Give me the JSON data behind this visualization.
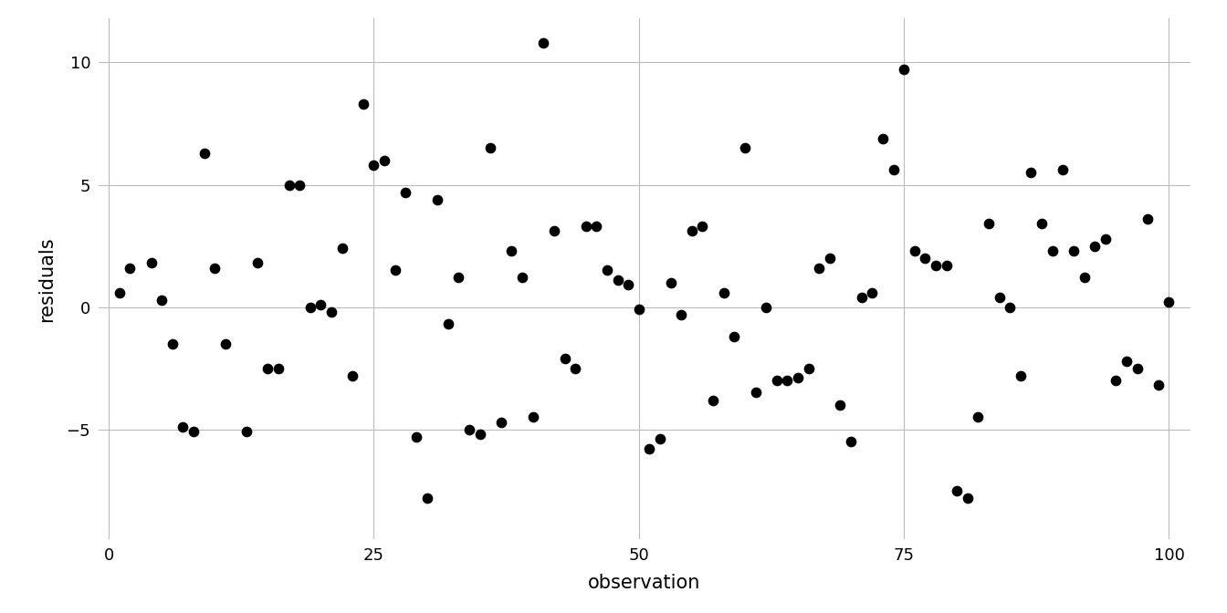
{
  "x": [
    1,
    2,
    4,
    5,
    6,
    7,
    8,
    9,
    10,
    11,
    13,
    14,
    15,
    16,
    17,
    18,
    19,
    20,
    21,
    22,
    23,
    24,
    25,
    26,
    27,
    28,
    29,
    30,
    31,
    32,
    33,
    34,
    35,
    36,
    37,
    38,
    39,
    40,
    41,
    42,
    43,
    44,
    45,
    46,
    47,
    48,
    49,
    50,
    51,
    52,
    53,
    54,
    55,
    56,
    57,
    58,
    59,
    60,
    61,
    62,
    63,
    64,
    65,
    66,
    67,
    68,
    69,
    70,
    71,
    72,
    73,
    74,
    75,
    76,
    77,
    78,
    79,
    80,
    81,
    82,
    83,
    84,
    85,
    86,
    87,
    88,
    89,
    90,
    91,
    92,
    93,
    94,
    95,
    96,
    97,
    98,
    99,
    100
  ],
  "y": [
    0.6,
    1.6,
    1.8,
    0.3,
    -1.5,
    -4.9,
    -5.1,
    6.3,
    1.6,
    -1.5,
    -5.1,
    1.8,
    -2.5,
    -2.5,
    5.0,
    5.0,
    0.0,
    0.1,
    -0.2,
    2.4,
    -2.8,
    8.3,
    5.8,
    6.0,
    1.5,
    4.7,
    -5.3,
    -7.8,
    4.4,
    -0.7,
    1.2,
    -5.0,
    -5.2,
    6.5,
    -4.7,
    2.3,
    1.2,
    -4.5,
    10.8,
    3.1,
    -2.1,
    -2.5,
    3.3,
    3.3,
    1.5,
    1.1,
    0.9,
    -0.1,
    -5.8,
    -5.4,
    1.0,
    -0.3,
    3.1,
    3.3,
    -3.8,
    0.6,
    -1.2,
    6.5,
    -3.5,
    -0.0,
    -3.0,
    -3.0,
    -2.9,
    -2.5,
    1.6,
    2.0,
    -4.0,
    -5.5,
    0.4,
    0.6,
    6.9,
    5.6,
    9.7,
    2.3,
    2.0,
    1.7,
    1.7,
    -7.5,
    -7.8,
    -4.5,
    3.4,
    0.4,
    0.0,
    -2.8,
    5.5,
    3.4,
    2.3,
    5.6,
    2.3,
    1.2,
    2.5,
    2.8,
    -3.0,
    -2.2,
    -2.5,
    3.6,
    -3.2,
    0.2
  ],
  "xlabel": "observation",
  "ylabel": "residuals",
  "xlim": [
    -1,
    102
  ],
  "ylim": [
    -9.5,
    11.8
  ],
  "xticks": [
    0,
    25,
    50,
    75,
    100
  ],
  "yticks": [
    -5,
    0,
    5,
    10
  ],
  "dot_color": "#000000",
  "dot_size": 55,
  "bg_color": "#ffffff",
  "panel_bg": "#ffffff",
  "grid_color": "#bbbbbb",
  "font_size_label": 15,
  "font_size_tick": 13
}
